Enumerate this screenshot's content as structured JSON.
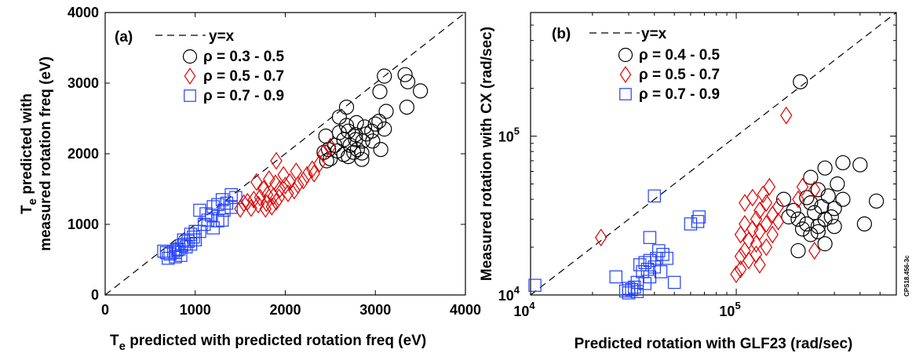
{
  "figure_id": "CPS18.456-3c",
  "chart_data": [
    {
      "panel": "(a)",
      "type": "scatter",
      "xlabel": "T",
      "xlabel_sub": "e",
      "xlabel_rest": " predicted with predicted rotation freq (eV)",
      "ylabel_line1_T": "T",
      "ylabel_line1_sub": "e",
      "ylabel_line1_rest": " predicted with",
      "ylabel_line2": "measured rotation freq (eV)",
      "xlim": [
        0,
        4000
      ],
      "ylim": [
        0,
        4000
      ],
      "xticks": [
        "0",
        "1000",
        "2000",
        "3000",
        "4000"
      ],
      "yticks": [
        "0",
        "1000",
        "2000",
        "3000",
        "4000"
      ],
      "reference_line": "y=x",
      "series": [
        {
          "name": "ρ = 0.3 - 0.5",
          "color": "#000000",
          "marker": "circle",
          "points": [
            [
              3100,
              3100
            ],
            [
              3330,
              3120
            ],
            [
              3360,
              3020
            ],
            [
              3500,
              2890
            ],
            [
              3050,
              2880
            ],
            [
              3350,
              2660
            ],
            [
              2680,
              2660
            ],
            [
              2600,
              2520
            ],
            [
              3120,
              2600
            ],
            [
              3040,
              2460
            ],
            [
              2790,
              2440
            ],
            [
              2680,
              2400
            ],
            [
              2880,
              2380
            ],
            [
              2960,
              2320
            ],
            [
              3100,
              2350
            ],
            [
              2700,
              2320
            ],
            [
              2600,
              2300
            ],
            [
              2650,
              2200
            ],
            [
              2780,
              2200
            ],
            [
              2860,
              2180
            ],
            [
              2900,
              2280
            ],
            [
              2720,
              2120
            ],
            [
              2800,
              2060
            ],
            [
              2760,
              2020
            ],
            [
              2850,
              2010
            ],
            [
              2700,
              1960
            ],
            [
              2650,
              1990
            ],
            [
              2580,
              2040
            ],
            [
              2550,
              2120
            ],
            [
              2480,
              2060
            ],
            [
              2430,
              2020
            ],
            [
              2460,
              1900
            ],
            [
              2850,
              1920
            ],
            [
              3060,
              2060
            ],
            [
              2500,
              1930
            ],
            [
              2780,
              2270
            ],
            [
              2970,
              2180
            ],
            [
              2450,
              2250
            ],
            [
              3000,
              2420
            ]
          ]
        },
        {
          "name": "ρ = 0.5 - 0.7",
          "color": "#e00000",
          "marker": "diamond",
          "points": [
            [
              1900,
              1900
            ],
            [
              2120,
              1750
            ],
            [
              1980,
              1700
            ],
            [
              1820,
              1640
            ],
            [
              1890,
              1580
            ],
            [
              2000,
              1550
            ],
            [
              2050,
              1600
            ],
            [
              2140,
              1560
            ],
            [
              1940,
              1500
            ],
            [
              2200,
              1620
            ],
            [
              1800,
              1420
            ],
            [
              1760,
              1500
            ],
            [
              1870,
              1400
            ],
            [
              1930,
              1380
            ],
            [
              2030,
              1440
            ],
            [
              1720,
              1380
            ],
            [
              1650,
              1350
            ],
            [
              1700,
              1280
            ],
            [
              1790,
              1300
            ],
            [
              1850,
              1250
            ],
            [
              1780,
              1220
            ],
            [
              1620,
              1230
            ],
            [
              1500,
              1220
            ],
            [
              1540,
              1300
            ],
            [
              1900,
              1320
            ],
            [
              2320,
              1720
            ],
            [
              2380,
              1860
            ],
            [
              2420,
              2000
            ],
            [
              2500,
              2100
            ],
            [
              2300,
              1780
            ],
            [
              1680,
              1600
            ],
            [
              1580,
              1320
            ],
            [
              2100,
              1480
            ],
            [
              2240,
              1700
            ]
          ]
        },
        {
          "name": "ρ = 0.7 - 0.9",
          "color": "#2040ff",
          "marker": "square",
          "points": [
            [
              1450,
              1380
            ],
            [
              1300,
              1350
            ],
            [
              1350,
              1300
            ],
            [
              1400,
              1420
            ],
            [
              1250,
              1280
            ],
            [
              1320,
              1200
            ],
            [
              1200,
              1250
            ],
            [
              1120,
              1150
            ],
            [
              1050,
              1200
            ],
            [
              1180,
              1130
            ],
            [
              1250,
              1050
            ],
            [
              1100,
              1000
            ],
            [
              1140,
              1060
            ],
            [
              1000,
              900
            ],
            [
              950,
              860
            ],
            [
              1000,
              780
            ],
            [
              920,
              760
            ],
            [
              880,
              720
            ],
            [
              850,
              700
            ],
            [
              900,
              680
            ],
            [
              800,
              640
            ],
            [
              780,
              600
            ],
            [
              760,
              620
            ],
            [
              720,
              580
            ],
            [
              680,
              600
            ],
            [
              650,
              620
            ],
            [
              700,
              520
            ],
            [
              780,
              540
            ],
            [
              840,
              560
            ],
            [
              820,
              650
            ],
            [
              950,
              720
            ],
            [
              870,
              780
            ],
            [
              980,
              820
            ],
            [
              1050,
              900
            ],
            [
              1400,
              1240
            ],
            [
              1300,
              1060
            ],
            [
              1200,
              950
            ]
          ]
        }
      ]
    },
    {
      "panel": "(b)",
      "type": "scatter",
      "scale": "log-log",
      "xlabel": "Predicted rotation with GLF23 (rad/sec)",
      "ylabel": "Measured rotation with CX (rad/sec)",
      "xlim": [
        10000,
        600000
      ],
      "ylim": [
        10000,
        600000
      ],
      "xticks": [
        {
          "base": "10",
          "exp": "4"
        },
        {
          "base": "10",
          "exp": "5"
        }
      ],
      "yticks": [
        {
          "base": "10",
          "exp": "4"
        },
        {
          "base": "10",
          "exp": "5"
        }
      ],
      "reference_line": "y=x",
      "series": [
        {
          "name": "ρ = 0.4 - 0.5",
          "color": "#000000",
          "marker": "circle",
          "points": [
            [
              205000,
              220000
            ],
            [
              330000,
              68000
            ],
            [
              400000,
              66000
            ],
            [
              270000,
              63000
            ],
            [
              230000,
              55000
            ],
            [
              310000,
              50000
            ],
            [
              250000,
              46000
            ],
            [
              280000,
              42000
            ],
            [
              330000,
              40000
            ],
            [
              220000,
              41000
            ],
            [
              260000,
              36000
            ],
            [
              300000,
              35000
            ],
            [
              240000,
              33000
            ],
            [
              270000,
              30000
            ],
            [
              200000,
              30000
            ],
            [
              220000,
              28000
            ],
            [
              250000,
              27000
            ],
            [
              290000,
              31000
            ],
            [
              180000,
              31000
            ],
            [
              230000,
              24000
            ],
            [
              210000,
              26000
            ],
            [
              250000,
              25000
            ],
            [
              200000,
              19000
            ],
            [
              270000,
              21000
            ],
            [
              420000,
              28000
            ],
            [
              480000,
              39000
            ],
            [
              300000,
              27000
            ],
            [
              170000,
              40000
            ],
            [
              190000,
              34000
            ],
            [
              230000,
              38000
            ]
          ]
        },
        {
          "name": "ρ = 0.5 - 0.7",
          "color": "#e00000",
          "marker": "diamond",
          "points": [
            [
              22000,
              23000
            ],
            [
              175000,
              135000
            ],
            [
              145000,
              48000
            ],
            [
              135000,
              43000
            ],
            [
              120000,
              41000
            ],
            [
              110000,
              38000
            ],
            [
              140000,
              38000
            ],
            [
              160000,
              36000
            ],
            [
              130000,
              34000
            ],
            [
              150000,
              32000
            ],
            [
              125000,
              30000
            ],
            [
              110000,
              28000
            ],
            [
              140000,
              28000
            ],
            [
              160000,
              29000
            ],
            [
              120000,
              26000
            ],
            [
              130000,
              25000
            ],
            [
              150000,
              24000
            ],
            [
              105000,
              24000
            ],
            [
              115000,
              22000
            ],
            [
              125000,
              21000
            ],
            [
              140000,
              20000
            ],
            [
              110000,
              19000
            ],
            [
              125000,
              18000
            ],
            [
              105000,
              17500
            ],
            [
              115000,
              16500
            ],
            [
              130000,
              15500
            ],
            [
              105000,
              14500
            ],
            [
              100000,
              13500
            ],
            [
              210000,
              48000
            ],
            [
              240000,
              46000
            ],
            [
              200000,
              40000
            ],
            [
              240000,
              19000
            ]
          ]
        },
        {
          "name": "ρ = 0.7 - 0.9",
          "color": "#2040ff",
          "marker": "square",
          "points": [
            [
              10500,
              11500
            ],
            [
              40000,
              42000
            ],
            [
              66000,
              31000
            ],
            [
              65000,
              29000
            ],
            [
              60000,
              28000
            ],
            [
              38000,
              23000
            ],
            [
              42000,
              19000
            ],
            [
              44000,
              18000
            ],
            [
              41000,
              17000
            ],
            [
              38000,
              16500
            ],
            [
              36000,
              16000
            ],
            [
              34000,
              15500
            ],
            [
              40000,
              15000
            ],
            [
              37000,
              14500
            ],
            [
              35000,
              14000
            ],
            [
              38000,
              13000
            ],
            [
              33000,
              12000
            ],
            [
              36000,
              11800
            ],
            [
              32000,
              11200
            ],
            [
              30000,
              11000
            ],
            [
              31000,
              10800
            ],
            [
              29000,
              10600
            ],
            [
              33000,
              10500
            ],
            [
              30000,
              10300
            ],
            [
              50000,
              12000
            ],
            [
              26000,
              13000
            ],
            [
              46000,
              17000
            ],
            [
              43000,
              14000
            ]
          ]
        }
      ]
    }
  ]
}
